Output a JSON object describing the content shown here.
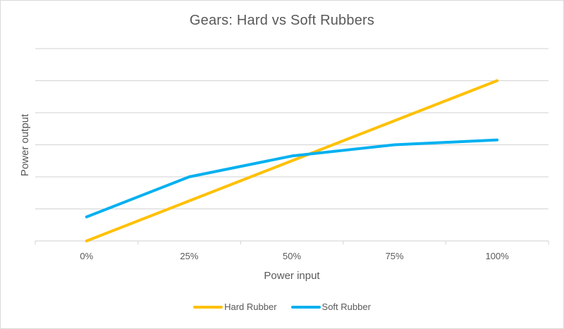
{
  "chart_data": {
    "type": "line",
    "title": "Gears: Hard vs Soft Rubbers",
    "xlabel": "Power input",
    "ylabel": "Power output",
    "categories": [
      "0%",
      "25%",
      "50%",
      "75%",
      "100%"
    ],
    "series": [
      {
        "name": "Hard Rubber",
        "color": "#FFC000",
        "values": [
          0,
          1.25,
          2.5,
          3.75,
          5.0
        ]
      },
      {
        "name": "Soft Rubber",
        "color": "#00B0F0",
        "values": [
          0.75,
          2.0,
          2.65,
          3.0,
          3.15
        ]
      }
    ],
    "ylim": [
      0,
      6
    ],
    "y_gridlines": 6,
    "y_tick_labels_visible": false,
    "grid": true,
    "legend_position": "bottom"
  },
  "legend": {
    "items": [
      {
        "label": "Hard Rubber",
        "color": "#FFC000"
      },
      {
        "label": "Soft Rubber",
        "color": "#00B0F0"
      }
    ]
  }
}
